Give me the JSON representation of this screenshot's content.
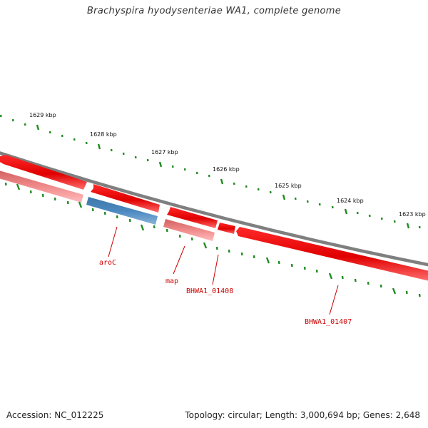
{
  "title": "Brachyspira hyodysenteriae WA1, complete genome",
  "footer": {
    "accession": "Accession: NC_012225",
    "summary": "Topology: circular; Length: 3,000,694 bp; Genes: 2,648"
  },
  "kbp_labels": [
    "1629 kbp",
    "1628 kbp",
    "1627 kbp",
    "1626 kbp",
    "1625 kbp",
    "1624 kbp",
    "1623 kbp"
  ],
  "genes": [
    {
      "name": "aroC",
      "label": "aroC"
    },
    {
      "name": "map",
      "label": "map"
    },
    {
      "name": "bhwa1-01408",
      "label": "BHWA1_01408"
    },
    {
      "name": "bhwa1-01407",
      "label": "BHWA1_01407"
    }
  ],
  "colors": {
    "forward_gene": "#ee0000",
    "reverse_gene": "#f08080",
    "highlight_gene": "#4682b4",
    "backbone": "#808080",
    "tick": "#228b22",
    "label_red": "#cc0000"
  }
}
